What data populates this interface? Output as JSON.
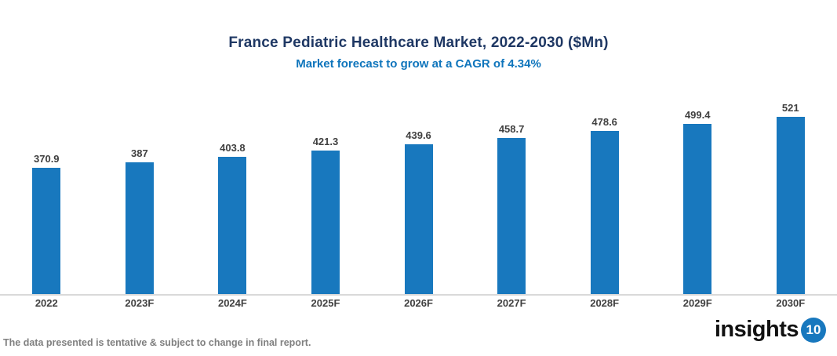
{
  "chart_data": {
    "type": "bar",
    "title": "France Pediatric Healthcare Market, 2022-2030 ($Mn)",
    "subtitle": "Market forecast to grow at a CAGR of 4.34%",
    "categories": [
      "2022",
      "2023F",
      "2024F",
      "2025F",
      "2026F",
      "2027F",
      "2028F",
      "2029F",
      "2030F"
    ],
    "values": [
      370.9,
      387,
      403.8,
      421.3,
      439.6,
      458.7,
      478.6,
      499.4,
      521
    ],
    "xlabel": "",
    "ylabel": "",
    "unit": "$Mn",
    "cagr": "4.34%",
    "value_labels_shown": true,
    "y_axis_visible": false,
    "gridlines": false,
    "legend": false,
    "colors": {
      "bar": "#1878BE",
      "title": "#1F3864",
      "subtitle": "#0F75BC",
      "value_label": "#404040",
      "axis_line": "#D9D9D9"
    }
  },
  "footer": {
    "disclaimer": "The data presented is tentative & subject to change in final report.",
    "logo_text": "insights",
    "logo_badge": "10",
    "logo_badge_color": "#1878BE"
  }
}
